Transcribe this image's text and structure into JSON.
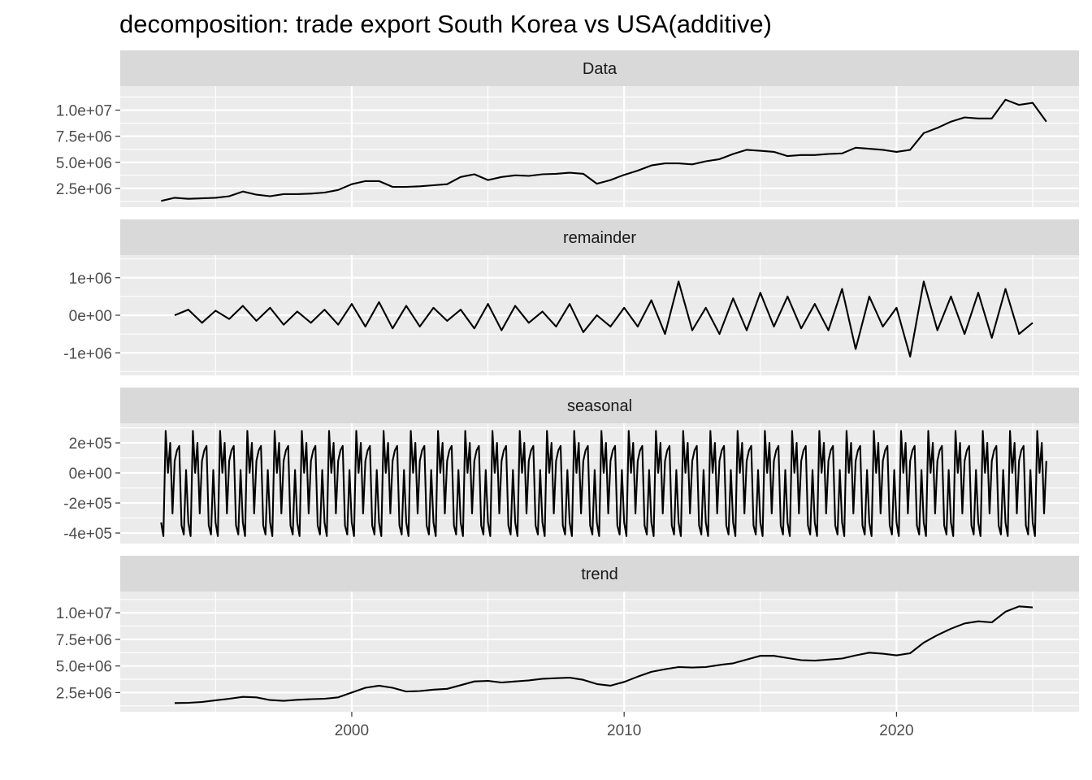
{
  "chart_data": {
    "type": "line",
    "title": "decomposition: trade export South Korea vs USA(additive)",
    "xlabel": "",
    "ylabel": "",
    "x_ticks": [
      2000,
      2010,
      2020
    ],
    "xlim": [
      1991.5,
      2026.7
    ],
    "colors": {
      "panel_bg": "#ebebeb",
      "strip_bg": "#d9d9d9",
      "grid": "#ffffff",
      "line": "#000000",
      "tick_text": "#4d4d4d"
    },
    "panels": [
      {
        "name": "Data",
        "ylim": [
          700000,
          12300000
        ],
        "y_ticks": [
          {
            "value": 2500000,
            "label": "2.5e+06"
          },
          {
            "value": 5000000,
            "label": "5.0e+06"
          },
          {
            "value": 7500000,
            "label": "7.5e+06"
          },
          {
            "value": 10000000,
            "label": "1.0e+07"
          }
        ],
        "series": {
          "x": [
            1993.0,
            1993.5,
            1994.0,
            1994.5,
            1995.0,
            1995.5,
            1996.0,
            1996.5,
            1997.0,
            1997.5,
            1998.0,
            1998.5,
            1999.0,
            1999.5,
            2000.0,
            2000.5,
            2001.0,
            2001.5,
            2002.0,
            2002.5,
            2003.0,
            2003.5,
            2004.0,
            2004.5,
            2005.0,
            2005.5,
            2006.0,
            2006.5,
            2007.0,
            2007.5,
            2008.0,
            2008.5,
            2009.0,
            2009.5,
            2010.0,
            2010.5,
            2011.0,
            2011.5,
            2012.0,
            2012.5,
            2013.0,
            2013.5,
            2014.0,
            2014.5,
            2015.0,
            2015.5,
            2016.0,
            2016.5,
            2017.0,
            2017.5,
            2018.0,
            2018.5,
            2019.0,
            2019.5,
            2020.0,
            2020.5,
            2021.0,
            2021.5,
            2022.0,
            2022.5,
            2023.0,
            2023.5,
            2024.0,
            2024.5,
            2025.0,
            2025.5
          ],
          "values": [
            1300000,
            1600000,
            1500000,
            1550000,
            1600000,
            1750000,
            2200000,
            1900000,
            1750000,
            1950000,
            1950000,
            2000000,
            2100000,
            2350000,
            2900000,
            3200000,
            3200000,
            2650000,
            2650000,
            2700000,
            2800000,
            2900000,
            3600000,
            3850000,
            3300000,
            3600000,
            3750000,
            3700000,
            3850000,
            3900000,
            4000000,
            3900000,
            2950000,
            3300000,
            3800000,
            4200000,
            4700000,
            4900000,
            4900000,
            4800000,
            5100000,
            5300000,
            5800000,
            6200000,
            6100000,
            6000000,
            5600000,
            5700000,
            5700000,
            5800000,
            5850000,
            6400000,
            6300000,
            6200000,
            6000000,
            6200000,
            7800000,
            8300000,
            8900000,
            9300000,
            9200000,
            9200000,
            11000000,
            10500000,
            10700000,
            8900000
          ]
        }
      },
      {
        "name": "remainder",
        "ylim": [
          -1600000,
          1600000
        ],
        "y_ticks": [
          {
            "value": -1000000,
            "label": "-1e+06"
          },
          {
            "value": 0,
            "label": "0e+00"
          },
          {
            "value": 1000000,
            "label": "1e+06"
          }
        ],
        "series": {
          "x": [
            1993.5,
            1994.0,
            1994.5,
            1995.0,
            1995.5,
            1996.0,
            1996.5,
            1997.0,
            1997.5,
            1998.0,
            1998.5,
            1999.0,
            1999.5,
            2000.0,
            2000.5,
            2001.0,
            2001.5,
            2002.0,
            2002.5,
            2003.0,
            2003.5,
            2004.0,
            2004.5,
            2005.0,
            2005.5,
            2006.0,
            2006.5,
            2007.0,
            2007.5,
            2008.0,
            2008.5,
            2009.0,
            2009.5,
            2010.0,
            2010.5,
            2011.0,
            2011.5,
            2012.0,
            2012.5,
            2013.0,
            2013.5,
            2014.0,
            2014.5,
            2015.0,
            2015.5,
            2016.0,
            2016.5,
            2017.0,
            2017.5,
            2018.0,
            2018.5,
            2019.0,
            2019.5,
            2020.0,
            2020.5,
            2021.0,
            2021.5,
            2022.0,
            2022.5,
            2023.0,
            2023.5,
            2024.0,
            2024.5,
            2025.0
          ],
          "values": [
            0,
            150000,
            -200000,
            120000,
            -100000,
            250000,
            -150000,
            200000,
            -250000,
            100000,
            -200000,
            150000,
            -250000,
            300000,
            -300000,
            350000,
            -350000,
            250000,
            -300000,
            200000,
            -150000,
            150000,
            -350000,
            300000,
            -400000,
            250000,
            -200000,
            100000,
            -300000,
            300000,
            -450000,
            0,
            -300000,
            200000,
            -300000,
            400000,
            -500000,
            900000,
            -400000,
            200000,
            -500000,
            450000,
            -400000,
            600000,
            -300000,
            500000,
            -350000,
            300000,
            -400000,
            700000,
            -900000,
            500000,
            -300000,
            200000,
            -1100000,
            900000,
            -400000,
            500000,
            -500000,
            600000,
            -600000,
            700000,
            -500000,
            -200000
          ]
        }
      },
      {
        "name": "seasonal",
        "ylim": [
          -470000,
          330000
        ],
        "y_ticks": [
          {
            "value": -400000,
            "label": "-4e+05"
          },
          {
            "value": -200000,
            "label": "-2e+05"
          },
          {
            "value": 0,
            "label": "0e+00"
          },
          {
            "value": 200000,
            "label": "2e+05"
          }
        ],
        "pattern_start": 1993.0,
        "pattern_end": 2025.5,
        "monthly_pattern": [
          -330000,
          -420000,
          280000,
          0,
          200000,
          -270000,
          80000,
          150000,
          180000,
          -350000,
          -410000,
          20000
        ]
      },
      {
        "name": "trend",
        "ylim": [
          700000,
          12000000
        ],
        "y_ticks": [
          {
            "value": 2500000,
            "label": "2.5e+06"
          },
          {
            "value": 5000000,
            "label": "5.0e+06"
          },
          {
            "value": 7500000,
            "label": "7.5e+06"
          },
          {
            "value": 10000000,
            "label": "1.0e+07"
          }
        ],
        "series": {
          "x": [
            1993.5,
            1994.0,
            1994.5,
            1995.0,
            1995.5,
            1996.0,
            1996.5,
            1997.0,
            1997.5,
            1998.0,
            1998.5,
            1999.0,
            1999.5,
            2000.0,
            2000.5,
            2001.0,
            2001.5,
            2002.0,
            2002.5,
            2003.0,
            2003.5,
            2004.0,
            2004.5,
            2005.0,
            2005.5,
            2006.0,
            2006.5,
            2007.0,
            2007.5,
            2008.0,
            2008.5,
            2009.0,
            2009.5,
            2010.0,
            2010.5,
            2011.0,
            2011.5,
            2012.0,
            2012.5,
            2013.0,
            2013.5,
            2014.0,
            2014.5,
            2015.0,
            2015.5,
            2016.0,
            2016.5,
            2017.0,
            2017.5,
            2018.0,
            2018.5,
            2019.0,
            2019.5,
            2020.0,
            2020.5,
            2021.0,
            2021.5,
            2022.0,
            2022.5,
            2023.0,
            2023.5,
            2024.0,
            2024.5,
            2025.0
          ],
          "values": [
            1520000,
            1540000,
            1620000,
            1780000,
            1920000,
            2100000,
            2050000,
            1800000,
            1720000,
            1820000,
            1880000,
            1920000,
            2050000,
            2500000,
            2950000,
            3150000,
            2950000,
            2600000,
            2650000,
            2780000,
            2850000,
            3200000,
            3550000,
            3600000,
            3450000,
            3550000,
            3650000,
            3800000,
            3850000,
            3900000,
            3700000,
            3300000,
            3150000,
            3500000,
            4000000,
            4450000,
            4700000,
            4900000,
            4850000,
            4900000,
            5100000,
            5250000,
            5600000,
            5950000,
            5950000,
            5750000,
            5550000,
            5500000,
            5600000,
            5700000,
            6000000,
            6250000,
            6150000,
            6000000,
            6200000,
            7200000,
            7900000,
            8500000,
            9000000,
            9200000,
            9100000,
            10100000,
            10600000,
            10500000
          ]
        }
      }
    ]
  }
}
